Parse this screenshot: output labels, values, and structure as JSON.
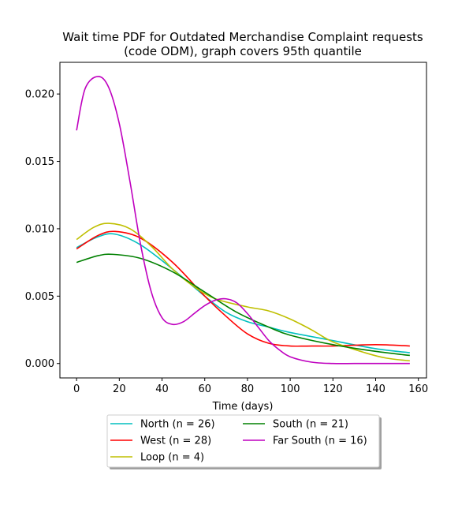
{
  "chart_data": {
    "type": "line",
    "title_line1": "Wait time PDF for Outdated Merchandise Complaint  requests",
    "title_line2": "(code ODM), graph covers 95th quantile",
    "xlabel": "Time (days)",
    "ylabel": "",
    "xlim": [
      -7.8,
      163.8
    ],
    "ylim": [
      -0.00107,
      0.02235
    ],
    "xticks": [
      0,
      20,
      40,
      60,
      80,
      100,
      120,
      140,
      160
    ],
    "yticks": [
      0.0,
      0.005,
      0.01,
      0.015,
      0.02
    ],
    "ytick_labels": [
      "0.000",
      "0.005",
      "0.010",
      "0.015",
      "0.020"
    ],
    "grid": false,
    "legend_position": "below",
    "series": [
      {
        "name": "North (n = 26)",
        "color": "#00bfbf",
        "x": [
          0,
          10,
          18,
          30,
          45,
          60,
          70,
          80,
          90,
          100,
          120,
          140,
          156
        ],
        "y": [
          0.0086,
          0.0094,
          0.0096,
          0.0088,
          0.007,
          0.005,
          0.0038,
          0.0031,
          0.0027,
          0.0023,
          0.0017,
          0.0011,
          0.0008
        ]
      },
      {
        "name": "West (n = 28)",
        "color": "#ff0000",
        "x": [
          0,
          10,
          18,
          30,
          45,
          60,
          70,
          80,
          90,
          100,
          110,
          120,
          140,
          156
        ],
        "y": [
          0.0085,
          0.0095,
          0.0098,
          0.0093,
          0.0075,
          0.005,
          0.0035,
          0.0022,
          0.0015,
          0.0013,
          0.0013,
          0.0013,
          0.0014,
          0.0013
        ]
      },
      {
        "name": "Loop (n = 4)",
        "color": "#bfbf00",
        "x": [
          0,
          8,
          15,
          25,
          35,
          45,
          55,
          65,
          80,
          90,
          100,
          110,
          120,
          135,
          145,
          156
        ],
        "y": [
          0.0092,
          0.0101,
          0.0104,
          0.01,
          0.0087,
          0.007,
          0.0057,
          0.0048,
          0.0042,
          0.0039,
          0.0033,
          0.0025,
          0.0016,
          0.0008,
          0.0004,
          0.0002
        ]
      },
      {
        "name": "South (n = 21)",
        "color": "#008000",
        "x": [
          0,
          10,
          17,
          30,
          45,
          60,
          75,
          90,
          100,
          120,
          140,
          156
        ],
        "y": [
          0.0075,
          0.008,
          0.0081,
          0.0078,
          0.0068,
          0.0053,
          0.0038,
          0.0027,
          0.0021,
          0.0014,
          0.0009,
          0.0006
        ]
      },
      {
        "name": "Far South (n = 16)",
        "color": "#bf00bf",
        "x": [
          0,
          4,
          10,
          15,
          20,
          25,
          30,
          35,
          40,
          45,
          50,
          55,
          60,
          65,
          70,
          75,
          80,
          85,
          90,
          95,
          100,
          110,
          120,
          130,
          140,
          156
        ],
        "y": [
          0.0173,
          0.0204,
          0.0213,
          0.0205,
          0.0178,
          0.0135,
          0.0088,
          0.0053,
          0.0034,
          0.0029,
          0.0031,
          0.0037,
          0.0043,
          0.0047,
          0.0048,
          0.0045,
          0.0037,
          0.0027,
          0.0017,
          0.001,
          0.0005,
          0.0001,
          0.0,
          0.0,
          0.0,
          0.0
        ]
      }
    ]
  }
}
